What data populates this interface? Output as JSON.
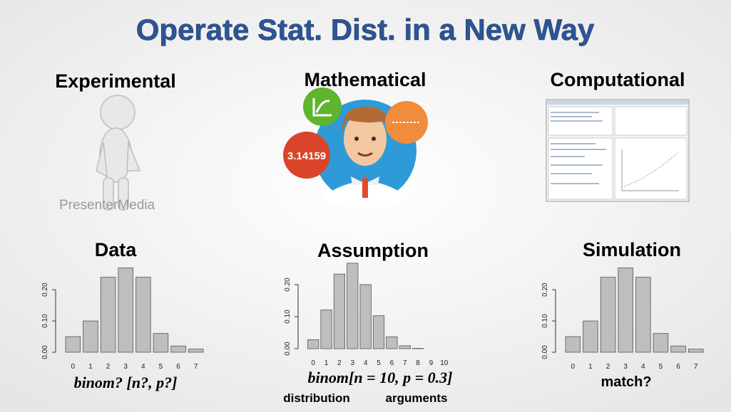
{
  "title": "Operate Stat. Dist. in a New Way",
  "columns": [
    "Experimental",
    "Mathematical",
    "Computational"
  ],
  "watermark": "PresenterMedia",
  "bubble_text": "3.14159",
  "chart_data": [
    {
      "type": "bar",
      "title": "Data",
      "categories": [
        "0",
        "1",
        "2",
        "3",
        "4",
        "5",
        "6",
        "7"
      ],
      "values": [
        0.05,
        0.1,
        0.24,
        0.27,
        0.24,
        0.06,
        0.02,
        0.01
      ],
      "color": "#bebebe",
      "ylim": [
        0,
        0.28
      ],
      "yticks": [
        {
          "value": 0,
          "label": "0.00"
        },
        {
          "value": 0.1,
          "label": "0.10"
        },
        {
          "value": 0.2,
          "label": "0.20"
        }
      ]
    },
    {
      "type": "bar",
      "title": "Assumption",
      "categories": [
        "0",
        "1",
        "2",
        "3",
        "4",
        "5",
        "6",
        "7",
        "8",
        "9",
        "10"
      ],
      "values": [
        0.028,
        0.121,
        0.233,
        0.267,
        0.2,
        0.103,
        0.037,
        0.009,
        0.001,
        0.0,
        0.0
      ],
      "color": "#bebebe",
      "ylim": [
        0,
        0.28
      ],
      "yticks": [
        {
          "value": 0,
          "label": "0.00"
        },
        {
          "value": 0.1,
          "label": "0.10"
        },
        {
          "value": 0.2,
          "label": "0.20"
        }
      ]
    },
    {
      "type": "bar",
      "title": "Simulation",
      "categories": [
        "0",
        "1",
        "2",
        "3",
        "4",
        "5",
        "6",
        "7"
      ],
      "values": [
        0.05,
        0.1,
        0.24,
        0.27,
        0.24,
        0.06,
        0.02,
        0.01
      ],
      "color": "#bebebe",
      "ylim": [
        0,
        0.28
      ],
      "yticks": [
        {
          "value": 0,
          "label": "0.00"
        },
        {
          "value": 0.1,
          "label": "0.10"
        },
        {
          "value": 0.2,
          "label": "0.20"
        }
      ]
    }
  ],
  "captions": [
    "binom? [n?, p?]",
    "binom[n = 10, p = 0.3]",
    "match?"
  ],
  "caption_notes": [
    "distribution",
    "arguments"
  ]
}
